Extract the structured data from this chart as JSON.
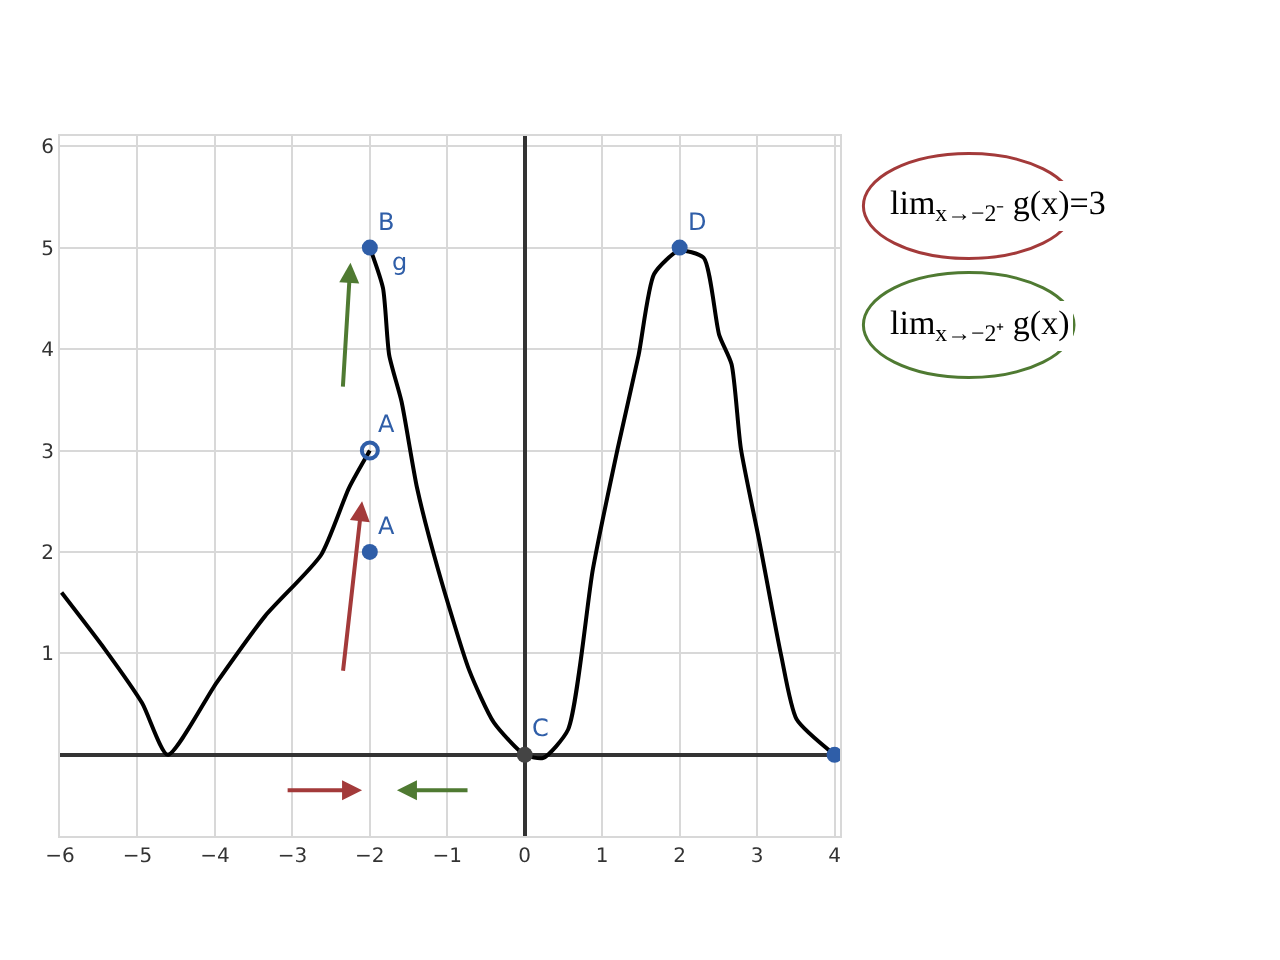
{
  "chart_data": {
    "type": "line",
    "xlim": [
      -6,
      4.07
    ],
    "ylim": [
      -0.8,
      6.1
    ],
    "xticks": [
      -6,
      -5,
      -4,
      -3,
      -2,
      -1,
      0,
      1,
      2,
      3,
      4
    ],
    "yticks": [
      1,
      2,
      3,
      4,
      5,
      6
    ],
    "grid": true,
    "series": [
      {
        "color": "#000000",
        "x": [
          -5.98,
          -5.42,
          -4.94,
          -4.61,
          -3.98,
          -3.35,
          -2.63,
          -2.27,
          -2
        ],
        "values": [
          1.6,
          1.04,
          0.51,
          0,
          0.71,
          1.37,
          1.97,
          2.63,
          3
        ]
      },
      {
        "color": "#000000",
        "x": [
          -2,
          -1.83,
          -1.75,
          -1.59,
          -1.39,
          -1.12,
          -0.72,
          -0.4,
          0,
          0.24,
          0.56,
          0.88,
          1.2,
          1.47,
          1.67,
          1.99,
          2.31,
          2.51,
          2.67,
          2.79,
          3.03,
          3.31,
          3.51,
          4
        ],
        "values": [
          5,
          4.6,
          3.94,
          3.48,
          2.63,
          1.83,
          0.84,
          0.32,
          0,
          -0.03,
          0.25,
          1.83,
          3.02,
          3.94,
          4.74,
          4.97,
          4.9,
          4.14,
          3.85,
          3.02,
          2.1,
          0.98,
          0.35,
          0
        ]
      },
      {
        "type": "scatter",
        "marker": "circle",
        "x": [
          -2,
          -2,
          0,
          2,
          4
        ],
        "values": [
          5,
          2,
          0,
          5,
          0
        ],
        "colors": [
          "#2f5ea8",
          "#2f5ea8",
          "#444444",
          "#2f5ea8",
          "#2f5ea8"
        ]
      },
      {
        "type": "scatter",
        "marker": "circle",
        "color": "#2f5ea8",
        "x": [
          -2
        ],
        "values": [
          3
        ]
      }
    ],
    "annotations": [
      {
        "text": "B",
        "x": -2,
        "y": 5
      },
      {
        "text": "A",
        "x": -2,
        "y": 3
      },
      {
        "text": "A",
        "x": -2,
        "y": 2
      },
      {
        "text": "C",
        "x": 0,
        "y": 0
      },
      {
        "text": "D",
        "x": 2,
        "y": 5
      },
      {
        "text": "g",
        "x": -1.83,
        "y": 4.6
      },
      "lim$_{x→−2⁻}$ g(x)=3",
      "lim$_{x→−2⁺}$ g(x)"
    ]
  }
}
